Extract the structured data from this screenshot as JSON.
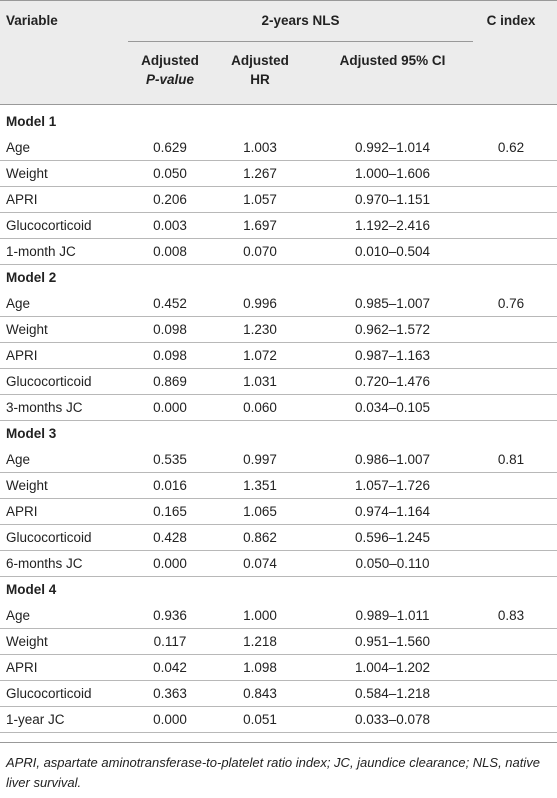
{
  "header": {
    "variable": "Variable",
    "nls_group": "2-years NLS",
    "c_index": "C index",
    "col_p_line1": "Adjusted",
    "col_p_line2": "P-value",
    "col_hr_line1": "Adjusted",
    "col_hr_line2": "HR",
    "col_ci": "Adjusted 95% CI"
  },
  "models": [
    {
      "name": "Model 1",
      "c_index": "0.62",
      "rows": [
        {
          "variable": "Age",
          "p": "0.629",
          "hr": "1.003",
          "ci": "0.992–1.014"
        },
        {
          "variable": "Weight",
          "p": "0.050",
          "hr": "1.267",
          "ci": "1.000–1.606"
        },
        {
          "variable": "APRI",
          "p": "0.206",
          "hr": "1.057",
          "ci": "0.970–1.151"
        },
        {
          "variable": "Glucocorticoid",
          "p": "0.003",
          "hr": "1.697",
          "ci": "1.192–2.416"
        },
        {
          "variable": "1-month JC",
          "p": "0.008",
          "hr": "0.070",
          "ci": "0.010–0.504"
        }
      ]
    },
    {
      "name": "Model 2",
      "c_index": "0.76",
      "rows": [
        {
          "variable": "Age",
          "p": "0.452",
          "hr": "0.996",
          "ci": "0.985–1.007"
        },
        {
          "variable": "Weight",
          "p": "0.098",
          "hr": "1.230",
          "ci": "0.962–1.572"
        },
        {
          "variable": "APRI",
          "p": "0.098",
          "hr": "1.072",
          "ci": "0.987–1.163"
        },
        {
          "variable": "Glucocorticoid",
          "p": "0.869",
          "hr": "1.031",
          "ci": "0.720–1.476"
        },
        {
          "variable": "3-months JC",
          "p": "0.000",
          "hr": "0.060",
          "ci": "0.034–0.105"
        }
      ]
    },
    {
      "name": "Model 3",
      "c_index": "0.81",
      "rows": [
        {
          "variable": "Age",
          "p": "0.535",
          "hr": "0.997",
          "ci": "0.986–1.007"
        },
        {
          "variable": "Weight",
          "p": "0.016",
          "hr": "1.351",
          "ci": "1.057–1.726"
        },
        {
          "variable": "APRI",
          "p": "0.165",
          "hr": "1.065",
          "ci": "0.974–1.164"
        },
        {
          "variable": "Glucocorticoid",
          "p": "0.428",
          "hr": "0.862",
          "ci": "0.596–1.245"
        },
        {
          "variable": "6-months JC",
          "p": "0.000",
          "hr": "0.074",
          "ci": "0.050–0.110"
        }
      ]
    },
    {
      "name": "Model 4",
      "c_index": "0.83",
      "rows": [
        {
          "variable": "Age",
          "p": "0.936",
          "hr": "1.000",
          "ci": "0.989–1.011"
        },
        {
          "variable": "Weight",
          "p": "0.117",
          "hr": "1.218",
          "ci": "0.951–1.560"
        },
        {
          "variable": "APRI",
          "p": "0.042",
          "hr": "1.098",
          "ci": "1.004–1.202"
        },
        {
          "variable": "Glucocorticoid",
          "p": "0.363",
          "hr": "0.843",
          "ci": "0.584–1.218"
        },
        {
          "variable": "1-year JC",
          "p": "0.000",
          "hr": "0.051",
          "ci": "0.033–0.078"
        }
      ]
    }
  ],
  "footnote": "APRI, aspartate aminotransferase-to-platelet ratio index; JC, jaundice clearance; NLS, native liver survival."
}
